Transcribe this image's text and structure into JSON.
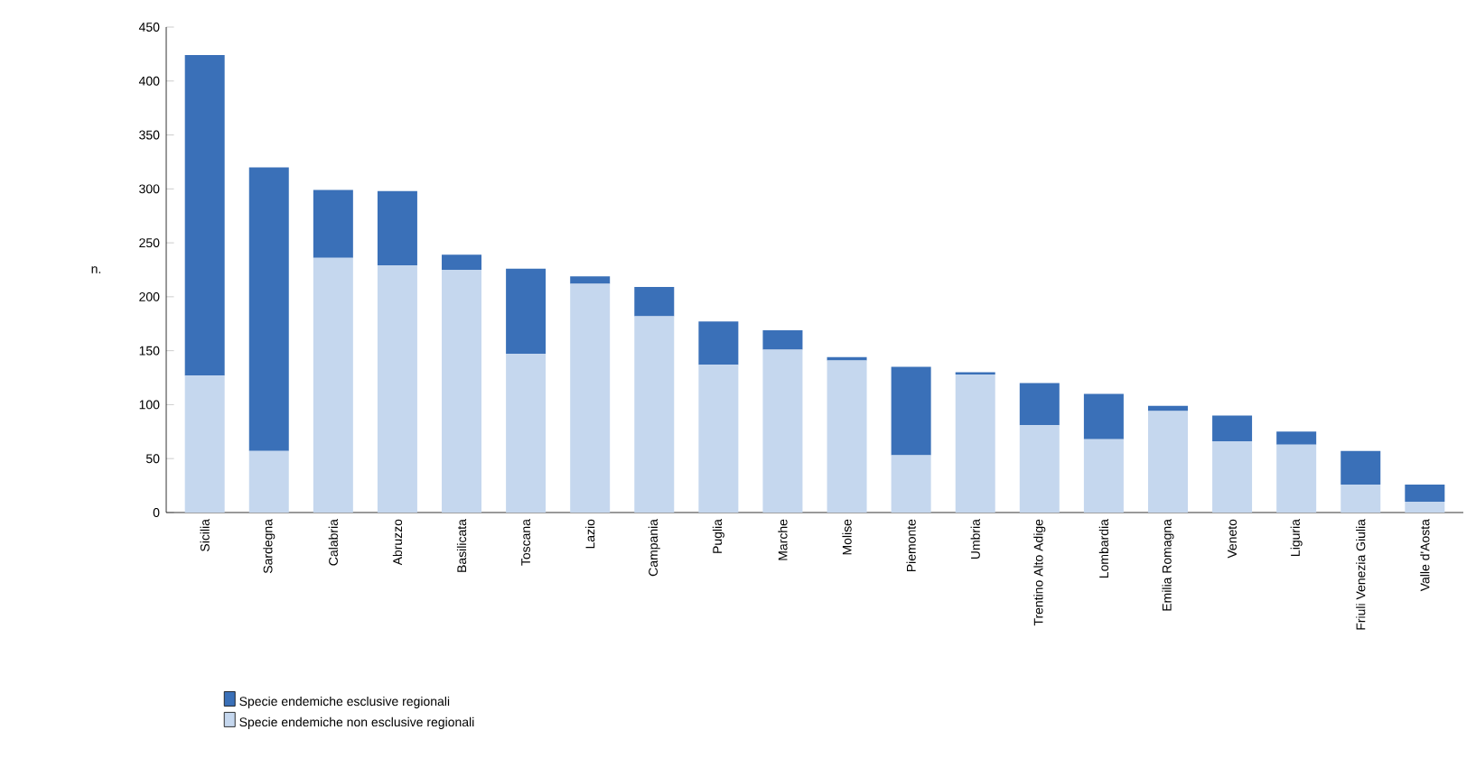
{
  "chart_data": {
    "type": "bar",
    "stacked": true,
    "ylabel": "n.",
    "categories": [
      "Sicilia",
      "Sardegna",
      "Calabria",
      "Abruzzo",
      "Basilicata",
      "Toscana",
      "Lazio",
      "Campania",
      "Puglia",
      "Marche",
      "Molise",
      "Piemonte",
      "Umbria",
      "Trentino Alto Adige",
      "Lombardia",
      "Emilia Romagna",
      "Veneto",
      "Liguria",
      "Friuli Venezia Giulia",
      "Valle d'Aosta"
    ],
    "series": [
      {
        "name": "Specie endemiche non esclusive regionali",
        "color": "#c5d7ee",
        "values": [
          127,
          57,
          236,
          229,
          225,
          147,
          212,
          182,
          137,
          151,
          141,
          53,
          128,
          81,
          68,
          94,
          66,
          63,
          26,
          10
        ]
      },
      {
        "name": "Specie endemiche esclusive regionali",
        "color": "#3a70b8",
        "values": [
          297,
          263,
          63,
          69,
          14,
          79,
          7,
          27,
          40,
          18,
          3,
          82,
          2,
          39,
          42,
          5,
          24,
          12,
          31,
          16
        ]
      }
    ],
    "ylim": [
      0,
      450
    ],
    "yticks": [
      0,
      50,
      100,
      150,
      200,
      250,
      300,
      350,
      400,
      450
    ],
    "legend": "bottom left"
  }
}
